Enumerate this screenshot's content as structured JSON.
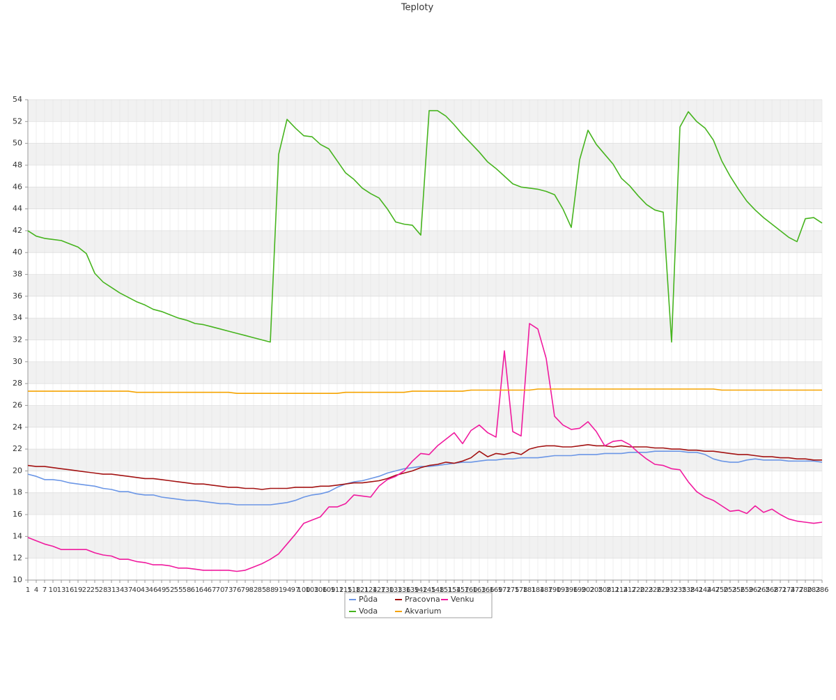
{
  "chart_data": {
    "type": "line",
    "title": "Teploty",
    "x": [
      1,
      4,
      7,
      10,
      13,
      16,
      19,
      22,
      25,
      28,
      31,
      34,
      37,
      40,
      43,
      46,
      49,
      52,
      55,
      58,
      61,
      64,
      67,
      70,
      73,
      76,
      79,
      82,
      85,
      88,
      91,
      94,
      97,
      100,
      103,
      106,
      109,
      112,
      115,
      118,
      121,
      124,
      127,
      130,
      133,
      136,
      139,
      142,
      145,
      148,
      151,
      154,
      157,
      160,
      163,
      166,
      169,
      172,
      175,
      178,
      181,
      184,
      187,
      190,
      193,
      196,
      199,
      202,
      205,
      208,
      211,
      214,
      217,
      220,
      223,
      226,
      229,
      232,
      235,
      238,
      241,
      244,
      247,
      250,
      253,
      256,
      259,
      262,
      265,
      268,
      271,
      274,
      277,
      280,
      283,
      286
    ],
    "series": [
      {
        "name": "Půda",
        "color": "#6b96e6",
        "values": [
          19.7,
          19.5,
          19.2,
          19.2,
          19.1,
          18.9,
          18.8,
          18.7,
          18.6,
          18.4,
          18.3,
          18.1,
          18.1,
          17.9,
          17.8,
          17.8,
          17.6,
          17.5,
          17.4,
          17.3,
          17.3,
          17.2,
          17.1,
          17.0,
          17.0,
          16.9,
          16.9,
          16.9,
          16.9,
          16.9,
          17.0,
          17.1,
          17.3,
          17.6,
          17.8,
          17.9,
          18.1,
          18.5,
          18.8,
          19.0,
          19.1,
          19.3,
          19.5,
          19.8,
          20.0,
          20.2,
          20.3,
          20.4,
          20.4,
          20.5,
          20.6,
          20.7,
          20.8,
          20.8,
          20.9,
          21.0,
          21.0,
          21.1,
          21.1,
          21.2,
          21.2,
          21.2,
          21.3,
          21.4,
          21.4,
          21.4,
          21.5,
          21.5,
          21.5,
          21.6,
          21.6,
          21.6,
          21.7,
          21.7,
          21.7,
          21.8,
          21.8,
          21.8,
          21.8,
          21.7,
          21.7,
          21.5,
          21.1,
          20.9,
          20.8,
          20.8,
          21.0,
          21.1,
          21.0,
          21.0,
          21.0,
          20.9,
          20.9,
          20.9,
          20.9,
          20.8
        ]
      },
      {
        "name": "Pracovna",
        "color": "#a31212",
        "values": [
          20.5,
          20.4,
          20.4,
          20.3,
          20.2,
          20.1,
          20.0,
          19.9,
          19.8,
          19.7,
          19.7,
          19.6,
          19.5,
          19.4,
          19.3,
          19.3,
          19.2,
          19.1,
          19.0,
          18.9,
          18.8,
          18.8,
          18.7,
          18.6,
          18.5,
          18.5,
          18.4,
          18.4,
          18.3,
          18.4,
          18.4,
          18.4,
          18.5,
          18.5,
          18.5,
          18.6,
          18.6,
          18.7,
          18.8,
          18.9,
          18.9,
          19.0,
          19.1,
          19.3,
          19.6,
          19.8,
          20.0,
          20.3,
          20.5,
          20.6,
          20.8,
          20.7,
          20.9,
          21.2,
          21.8,
          21.3,
          21.6,
          21.5,
          21.7,
          21.5,
          22.0,
          22.2,
          22.3,
          22.3,
          22.2,
          22.2,
          22.3,
          22.4,
          22.3,
          22.3,
          22.2,
          22.3,
          22.2,
          22.2,
          22.2,
          22.1,
          22.1,
          22.0,
          22.0,
          21.9,
          21.9,
          21.8,
          21.8,
          21.7,
          21.6,
          21.5,
          21.5,
          21.4,
          21.3,
          21.3,
          21.2,
          21.2,
          21.1,
          21.1,
          21.0,
          21.0
        ]
      },
      {
        "name": "Venku",
        "color": "#f01a9e",
        "values": [
          13.9,
          13.6,
          13.3,
          13.1,
          12.8,
          12.8,
          12.8,
          12.8,
          12.5,
          12.3,
          12.2,
          11.9,
          11.9,
          11.7,
          11.6,
          11.4,
          11.4,
          11.3,
          11.1,
          11.1,
          11.0,
          10.9,
          10.9,
          10.9,
          10.9,
          10.8,
          10.9,
          11.2,
          11.5,
          11.9,
          12.4,
          13.3,
          14.2,
          15.2,
          15.5,
          15.8,
          16.7,
          16.7,
          17.0,
          17.8,
          17.7,
          17.6,
          18.6,
          19.2,
          19.5,
          20.0,
          20.9,
          21.6,
          21.5,
          22.3,
          22.9,
          23.5,
          22.5,
          23.7,
          24.2,
          23.5,
          23.1,
          31.0,
          23.6,
          23.2,
          33.5,
          33.0,
          30.3,
          25.0,
          24.2,
          23.8,
          23.9,
          24.5,
          23.6,
          22.3,
          22.7,
          22.8,
          22.4,
          21.7,
          21.1,
          20.6,
          20.5,
          20.2,
          20.1,
          19.0,
          18.1,
          17.6,
          17.3,
          16.8,
          16.3,
          16.4,
          16.1,
          16.8,
          16.2,
          16.5,
          16.0,
          15.6,
          15.4,
          15.3,
          15.2,
          15.3
        ]
      },
      {
        "name": "Voda",
        "color": "#46b41e",
        "values": [
          42.0,
          41.5,
          41.3,
          41.2,
          41.1,
          40.8,
          40.5,
          39.9,
          38.1,
          37.3,
          36.8,
          36.3,
          35.9,
          35.5,
          35.2,
          34.8,
          34.6,
          34.3,
          34.0,
          33.8,
          33.5,
          33.4,
          33.2,
          33.0,
          32.8,
          32.6,
          32.4,
          32.2,
          32.0,
          31.8,
          49.0,
          52.2,
          51.4,
          50.7,
          50.6,
          49.9,
          49.5,
          48.4,
          47.3,
          46.7,
          45.9,
          45.4,
          45.0,
          44.0,
          42.8,
          42.6,
          42.5,
          41.6,
          53.0,
          53.0,
          52.5,
          51.7,
          50.8,
          50.0,
          49.2,
          48.3,
          47.7,
          47.0,
          46.3,
          46.0,
          45.9,
          45.8,
          45.6,
          45.3,
          44.0,
          42.3,
          48.5,
          51.2,
          49.9,
          49.0,
          48.1,
          46.8,
          46.1,
          45.2,
          44.4,
          43.9,
          43.7,
          31.8,
          51.5,
          52.9,
          52.0,
          51.4,
          50.3,
          48.4,
          47.0,
          45.8,
          44.7,
          43.9,
          43.2,
          42.6,
          42.0,
          41.4,
          41.0,
          43.1,
          43.2,
          42.7
        ]
      },
      {
        "name": "Akvarium",
        "color": "#f5a300",
        "values": [
          27.3,
          27.3,
          27.3,
          27.3,
          27.3,
          27.3,
          27.3,
          27.3,
          27.3,
          27.3,
          27.3,
          27.3,
          27.3,
          27.2,
          27.2,
          27.2,
          27.2,
          27.2,
          27.2,
          27.2,
          27.2,
          27.2,
          27.2,
          27.2,
          27.2,
          27.1,
          27.1,
          27.1,
          27.1,
          27.1,
          27.1,
          27.1,
          27.1,
          27.1,
          27.1,
          27.1,
          27.1,
          27.1,
          27.2,
          27.2,
          27.2,
          27.2,
          27.2,
          27.2,
          27.2,
          27.2,
          27.3,
          27.3,
          27.3,
          27.3,
          27.3,
          27.3,
          27.3,
          27.4,
          27.4,
          27.4,
          27.4,
          27.4,
          27.4,
          27.4,
          27.4,
          27.5,
          27.5,
          27.5,
          27.5,
          27.5,
          27.5,
          27.5,
          27.5,
          27.5,
          27.5,
          27.5,
          27.5,
          27.5,
          27.5,
          27.5,
          27.5,
          27.5,
          27.5,
          27.5,
          27.5,
          27.5,
          27.5,
          27.4,
          27.4,
          27.4,
          27.4,
          27.4,
          27.4,
          27.4,
          27.4,
          27.4,
          27.4,
          27.4,
          27.4,
          27.4
        ]
      }
    ],
    "ylim": [
      10,
      54
    ],
    "yticks": [
      10,
      12,
      14,
      16,
      18,
      20,
      22,
      24,
      26,
      28,
      30,
      32,
      34,
      36,
      38,
      40,
      42,
      44,
      46,
      48,
      50,
      52,
      54
    ],
    "grid": true,
    "legend": "bottom"
  }
}
